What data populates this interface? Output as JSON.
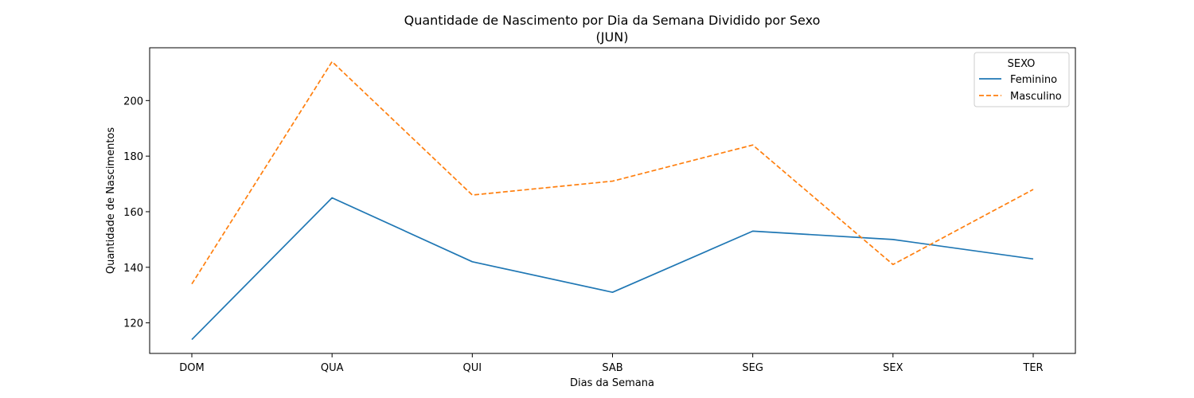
{
  "chart_data": {
    "type": "line",
    "title": "Quantidade de Nascimento por Dia da Semana Dividido por Sexo",
    "subtitle": "(JUN)",
    "xlabel": "Dias da Semana",
    "ylabel": "Quantidade de Nascimentos",
    "categories": [
      "DOM",
      "QUA",
      "QUI",
      "SAB",
      "SEG",
      "SEX",
      "TER"
    ],
    "ylim": [
      109,
      219
    ],
    "yticks": [
      120,
      140,
      160,
      180,
      200
    ],
    "grid": false,
    "legend": {
      "title": "SEXO",
      "placement": "top-right"
    },
    "series": [
      {
        "name": "Feminino",
        "values": [
          114,
          165,
          142,
          131,
          153,
          150,
          143
        ],
        "color": "#1f77b4",
        "style": "solid"
      },
      {
        "name": "Masculino",
        "values": [
          134,
          214,
          166,
          171,
          184,
          141,
          168
        ],
        "color": "#ff7f0e",
        "style": "dashed"
      }
    ]
  }
}
